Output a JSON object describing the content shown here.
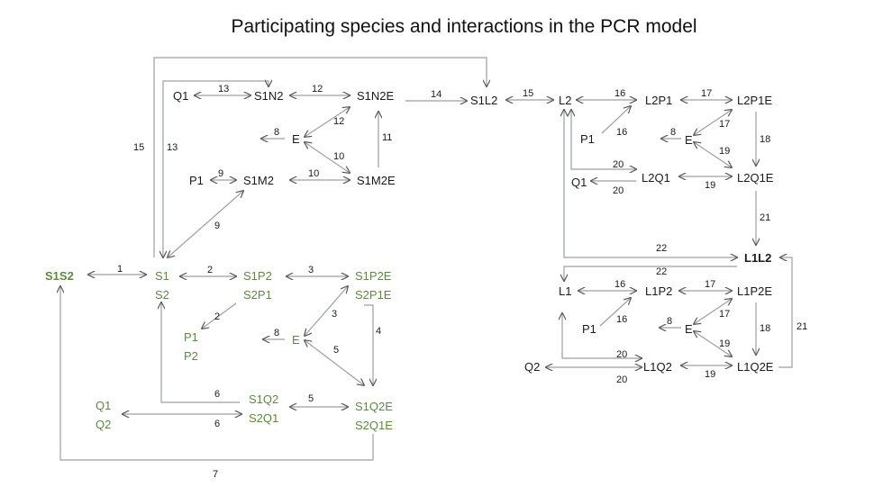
{
  "title": "Participating species and interactions in the PCR model",
  "colors": {
    "green": "#5c8a3e",
    "text": "#1a1a1a",
    "line": "#9aa0a6"
  },
  "species": {
    "S1S2": "S1S2",
    "S1": "S1",
    "S2": "S2",
    "Q1": "Q1",
    "Q2": "Q2",
    "P1": "P1",
    "P2": "P2",
    "E": "E",
    "S1N2": "S1N2",
    "S1N2E": "S1N2E",
    "S1M2": "S1M2",
    "S1M2E": "S1M2E",
    "S1L2": "S1L2",
    "S1P2": "S1P2",
    "S2P1": "S2P1",
    "S1P2E": "S1P2E",
    "S2P1E": "S2P1E",
    "S1Q2": "S1Q2",
    "S2Q1": "S2Q1",
    "S1Q2E": "S1Q2E",
    "S2Q1E": "S2Q1E",
    "L1": "L1",
    "L2": "L2",
    "L1L2": "L1L2",
    "L2P1": "L2P1",
    "L2P1E": "L2P1E",
    "L2Q1": "L2Q1",
    "L2Q1E": "L2Q1E",
    "L1P2": "L1P2",
    "L1P2E": "L1P2E",
    "L1Q2": "L1Q2",
    "L1Q2E": "L1Q2E"
  },
  "reactions": [
    "1",
    "2",
    "3",
    "4",
    "5",
    "6",
    "7",
    "8",
    "9",
    "10",
    "11",
    "12",
    "13",
    "14",
    "15",
    "16",
    "17",
    "18",
    "19",
    "20",
    "21",
    "22"
  ]
}
